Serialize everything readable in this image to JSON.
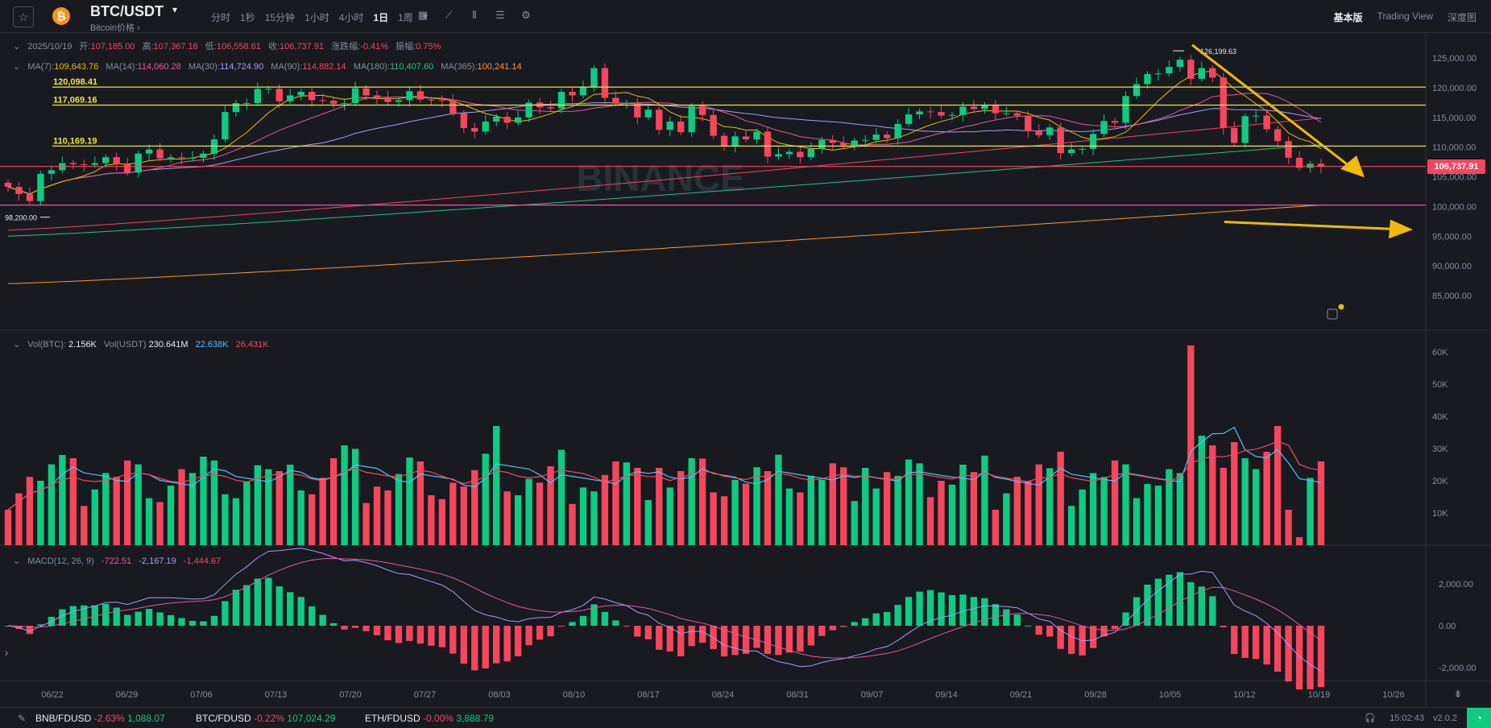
{
  "header": {
    "pair": "BTC/USDT",
    "subtitle": "Bitcoin价格 ›",
    "intervals": [
      "分时",
      "1秒",
      "15分钟",
      "1小时",
      "4小时",
      "1日",
      "1周"
    ],
    "active_interval": "1日",
    "views": [
      "基本版",
      "Trading View",
      "深度图"
    ],
    "active_view": "基本版"
  },
  "ohlc": {
    "date": "2025/10/19",
    "open_label": "开:",
    "open": "107,185.00",
    "high_label": "高:",
    "high": "107,367.16",
    "low_label": "低:",
    "low": "106,558.61",
    "close_label": "收:",
    "close": "106,737.91",
    "change_label": "涨跌幅:",
    "change": "-0.41%",
    "amp_label": "振幅:",
    "amp": "0.75%"
  },
  "ma": {
    "ma7_label": "MA(7):",
    "ma7": "109,643.76",
    "ma14_label": "MA(14):",
    "ma14": "114,060.28",
    "ma30_label": "MA(30):",
    "ma30": "114,724.90",
    "ma90_label": "MA(90):",
    "ma90": "114,882.14",
    "ma180_label": "MA(180):",
    "ma180": "110,407.60",
    "ma365_label": "MA(365):",
    "ma365": "100,241.14"
  },
  "levels": {
    "l1": "120,098.41",
    "l2": "117,069.16",
    "l3": "110,169.19",
    "low_marker": "98,200.00",
    "high_marker": "126,199.63"
  },
  "last_price": "106,737.91",
  "price_axis": [
    "125,000.00",
    "120,000.00",
    "115,000.00",
    "110,000.00",
    "105,000.00",
    "100,000.00",
    "95,000.00",
    "90,000.00",
    "85,000.00"
  ],
  "volume": {
    "vol_btc_label": "Vol(BTC):",
    "vol_btc": "2.156K",
    "vol_usdt_label": "Vol(USDT)",
    "vol_usdt": "230.641M",
    "ma1": "22.638K",
    "ma2": "26.431K",
    "axis": [
      "60K",
      "50K",
      "40K",
      "30K",
      "20K",
      "10K"
    ]
  },
  "macd": {
    "label": "MACD(12, 26, 9)",
    "dif": "-722.51",
    "dea": "-2,167.19",
    "hist": "-1,444.67",
    "axis": [
      "2,000.00",
      "0.00",
      "-2,000.00"
    ]
  },
  "dates": [
    "06/22",
    "06/29",
    "07/06",
    "07/13",
    "07/20",
    "07/27",
    "08/03",
    "08/10",
    "08/17",
    "08/24",
    "08/31",
    "09/07",
    "09/14",
    "09/21",
    "09/28",
    "10/05",
    "10/12",
    "10/19",
    "10/26"
  ],
  "watermark": "BINANCE",
  "colors": {
    "up": "#0ecb81",
    "down": "#f6465d",
    "level": "#f0e442",
    "arrow": "#f0b90b"
  },
  "bottom": {
    "tickers": [
      {
        "sym": "BNB/FDUSD",
        "chg": "-2.63%",
        "price": "1,088.07"
      },
      {
        "sym": "BTC/FDUSD",
        "chg": "-0.22%",
        "price": "107,024.29"
      },
      {
        "sym": "ETH/FDUSD",
        "chg": "-0.00%",
        "price": "3,888.79"
      }
    ],
    "time": "15:02:43",
    "version": "v2.0.2"
  },
  "chart_data": {
    "type": "candlestick",
    "x": [
      "06/20",
      "06/21",
      "06/22",
      "06/23",
      "06/24",
      "06/25",
      "06/26",
      "06/27",
      "06/28",
      "06/29",
      "06/30",
      "07/01",
      "07/02",
      "07/03",
      "07/04",
      "07/05",
      "07/06",
      "07/07",
      "07/08",
      "07/09",
      "07/10",
      "07/11",
      "07/12",
      "07/13",
      "07/14",
      "07/15",
      "07/16",
      "07/17",
      "07/18",
      "07/19",
      "07/20",
      "07/21",
      "07/22",
      "07/23",
      "07/24",
      "07/25",
      "07/26",
      "07/27",
      "07/28",
      "07/29",
      "07/30",
      "07/31",
      "08/01",
      "08/02",
      "08/03",
      "08/04",
      "08/05",
      "08/06",
      "08/07",
      "08/08",
      "08/09",
      "08/10",
      "08/11",
      "08/12",
      "08/13",
      "08/14",
      "08/15",
      "08/16",
      "08/17",
      "08/18",
      "08/19",
      "08/20",
      "08/21",
      "08/22",
      "08/23",
      "08/24",
      "08/25",
      "08/26",
      "08/27",
      "08/28",
      "08/29",
      "08/30",
      "08/31",
      "09/01",
      "09/02",
      "09/03",
      "09/04",
      "09/05",
      "09/06",
      "09/07",
      "09/08",
      "09/09",
      "09/10",
      "09/11",
      "09/12",
      "09/13",
      "09/14",
      "09/15",
      "09/16",
      "09/17",
      "09/18",
      "09/19",
      "09/20",
      "09/21",
      "09/22",
      "09/23",
      "09/24",
      "09/25",
      "09/26",
      "09/27",
      "09/28",
      "09/29",
      "09/30",
      "10/01",
      "10/02",
      "10/03",
      "10/04",
      "10/05",
      "10/06",
      "10/07",
      "10/08",
      "10/09",
      "10/10",
      "10/11",
      "10/12",
      "10/13",
      "10/14",
      "10/15",
      "10/16",
      "10/17",
      "10/18",
      "10/19"
    ],
    "close": [
      103300,
      102100,
      100900,
      105500,
      106100,
      107300,
      107100,
      107000,
      107300,
      108300,
      107100,
      105700,
      108900,
      109600,
      108100,
      108300,
      108200,
      108200,
      108900,
      111300,
      115900,
      117400,
      117400,
      119800,
      119800,
      117700,
      118700,
      119300,
      117900,
      117800,
      117300,
      117400,
      119900,
      118700,
      118300,
      117600,
      117900,
      119400,
      118000,
      117900,
      117800,
      115700,
      113200,
      112600,
      114300,
      115100,
      114100,
      115000,
      117500,
      116700,
      116500,
      119300,
      118700,
      120100,
      123300,
      118300,
      117300,
      117400,
      115000,
      116300,
      112900,
      114300,
      112500,
      116900,
      115400,
      111900,
      110200,
      111800,
      111300,
      112600,
      108400,
      108800,
      109200,
      108300,
      109700,
      111200,
      110700,
      110300,
      111100,
      111200,
      112100,
      111500,
      113900,
      115500,
      116000,
      115900,
      115300,
      115400,
      116800,
      116400,
      117100,
      115700,
      115700,
      115300,
      112700,
      112000,
      113300,
      109000,
      109600,
      109700,
      112200,
      114400,
      114100,
      118600,
      120600,
      122300,
      122400,
      123500,
      124700,
      121500,
      123300,
      121700,
      113200,
      110700,
      115200,
      115300,
      113000,
      111000,
      108200,
      106500,
      107200,
      106700
    ]
  }
}
